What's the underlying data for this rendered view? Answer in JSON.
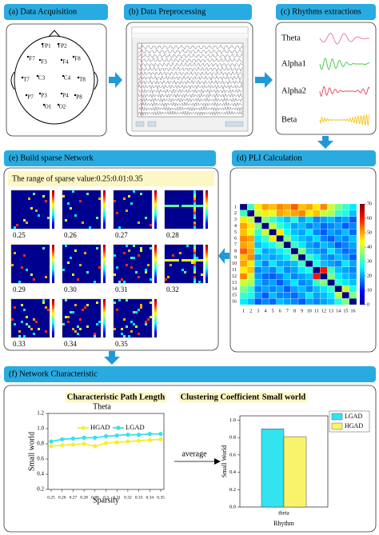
{
  "panels": {
    "a": {
      "title": "(a) Data Acquisition",
      "electrodes": [
        "FP1",
        "FP2",
        "F7",
        "F3",
        "F4",
        "F8",
        "T7",
        "C3",
        "C4",
        "T8",
        "P7",
        "P3",
        "P4",
        "P8",
        "O1",
        "O2"
      ]
    },
    "b": {
      "title": "(b) Data Preprocessing"
    },
    "c": {
      "title": "(c) Rhythms extractions",
      "rhythms": [
        "Theta",
        "Alpha1",
        "Alpha2",
        "Beta"
      ]
    },
    "d": {
      "title": "(d) PLI Calculation",
      "axis_labels": [
        1,
        2,
        3,
        4,
        5,
        6,
        7,
        8,
        9,
        10,
        11,
        12,
        13,
        14,
        15,
        16
      ],
      "colorbar_lim": [
        0,
        70
      ],
      "colorbar_ticks": [
        0,
        10,
        20,
        30,
        40,
        50,
        60,
        70
      ],
      "matrix": [
        [
          0,
          30,
          45,
          50,
          48,
          52,
          50,
          55,
          48,
          50,
          45,
          52,
          40,
          35,
          30,
          25
        ],
        [
          30,
          0,
          40,
          45,
          42,
          50,
          48,
          50,
          52,
          45,
          48,
          40,
          38,
          30,
          28,
          22
        ],
        [
          45,
          40,
          0,
          35,
          30,
          25,
          22,
          28,
          20,
          24,
          18,
          20,
          22,
          18,
          20,
          15
        ],
        [
          50,
          45,
          35,
          0,
          40,
          30,
          25,
          20,
          22,
          18,
          20,
          16,
          18,
          20,
          15,
          18
        ],
        [
          48,
          42,
          30,
          40,
          0,
          45,
          28,
          22,
          20,
          25,
          18,
          15,
          20,
          18,
          22,
          16
        ],
        [
          52,
          50,
          25,
          30,
          45,
          0,
          35,
          25,
          22,
          20,
          24,
          18,
          15,
          20,
          18,
          22
        ],
        [
          50,
          48,
          22,
          25,
          28,
          35,
          0,
          30,
          25,
          20,
          18,
          22,
          20,
          15,
          18,
          20
        ],
        [
          55,
          50,
          28,
          20,
          22,
          25,
          30,
          0,
          35,
          22,
          20,
          18,
          25,
          20,
          16,
          18
        ],
        [
          48,
          52,
          20,
          22,
          20,
          22,
          25,
          35,
          0,
          30,
          25,
          20,
          18,
          22,
          20,
          15
        ],
        [
          50,
          45,
          24,
          18,
          25,
          20,
          20,
          22,
          30,
          0,
          28,
          22,
          20,
          18,
          25,
          20
        ],
        [
          45,
          48,
          18,
          20,
          18,
          24,
          18,
          20,
          25,
          28,
          0,
          60,
          30,
          22,
          20,
          18
        ],
        [
          52,
          40,
          20,
          16,
          15,
          18,
          22,
          18,
          20,
          22,
          60,
          0,
          35,
          25,
          22,
          20
        ],
        [
          40,
          38,
          22,
          18,
          20,
          15,
          20,
          25,
          18,
          20,
          30,
          35,
          0,
          30,
          25,
          22
        ],
        [
          35,
          30,
          18,
          20,
          18,
          20,
          15,
          20,
          22,
          18,
          22,
          25,
          30,
          0,
          40,
          28
        ],
        [
          30,
          28,
          20,
          15,
          22,
          18,
          18,
          16,
          20,
          25,
          20,
          22,
          25,
          40,
          0,
          35
        ],
        [
          25,
          22,
          15,
          18,
          16,
          22,
          20,
          18,
          15,
          20,
          18,
          20,
          22,
          28,
          35,
          0
        ]
      ]
    },
    "e": {
      "title": "(e) Build sparse Network",
      "range_text": "The range of sparse value:0.25:0.01:0.35",
      "sparsity_labels": [
        "0.25",
        "0.26",
        "0.27",
        "0.28",
        "0.29",
        "0.30",
        "0.31",
        "0.32",
        "0.33",
        "0.34",
        "0.35"
      ]
    },
    "f": {
      "title": "(f) Network Characteristic",
      "metrics": [
        "Characteristic Path Length",
        "Clustering Coefficient",
        "Small world"
      ],
      "arrow_text": "average",
      "line_chart": {
        "type": "line",
        "title": "Theta",
        "y_label": "Small world",
        "x_label": "Sparsity",
        "x": [
          0.25,
          0.26,
          0.27,
          0.28,
          0.29,
          0.3,
          0.31,
          0.32,
          0.33,
          0.34,
          0.35
        ],
        "xlim": [
          0.25,
          0.35
        ],
        "ylim": [
          0.2,
          1.2
        ],
        "yticks": [
          0.2,
          0.4,
          0.6,
          0.8,
          {
            "value": 1,
            "label": "1.0"
          },
          1.2
        ],
        "series": [
          {
            "name": "HGAD",
            "color": "#f3ef2e",
            "values": [
              0.77,
              0.78,
              0.79,
              0.8,
              0.77,
              0.81,
              0.82,
              0.83,
              0.84,
              0.85,
              0.86
            ]
          },
          {
            "name": "LGAD",
            "color": "#33e3e8",
            "values": [
              0.83,
              0.86,
              0.87,
              0.88,
              0.88,
              0.9,
              0.91,
              0.92,
              0.92,
              0.93,
              0.93
            ]
          }
        ]
      },
      "bar_chart": {
        "type": "bar",
        "y_label": "Small World",
        "x_label": "Rhythm",
        "categories": [
          "theta"
        ],
        "ylim": [
          0,
          1.05
        ],
        "yticks": [
          {
            "value": 0,
            "label": "0.0"
          },
          0.2,
          0.4,
          0.6,
          0.8,
          {
            "value": 1,
            "label": "1.0"
          }
        ],
        "series": [
          {
            "name": "LGAD",
            "color": "#33e3f0",
            "values": [
              0.9
            ]
          },
          {
            "name": "HGAD",
            "color": "#f8f36a",
            "values": [
              0.81
            ]
          }
        ]
      }
    }
  }
}
